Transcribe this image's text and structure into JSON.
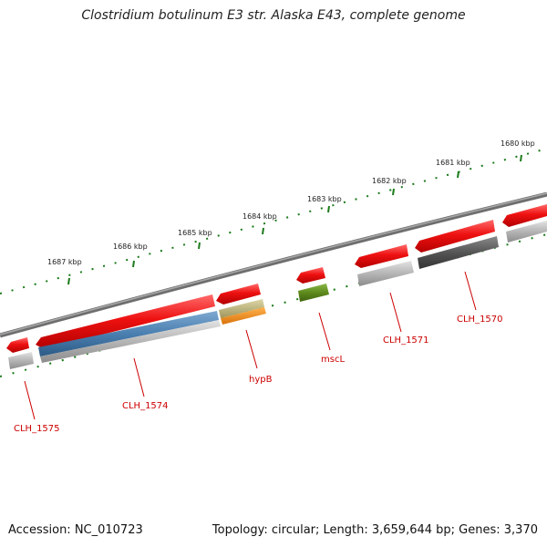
{
  "title": "Clostridium botulinum E3 str. Alaska E43, complete genome",
  "footer": {
    "accession": "Accession: NC_010723",
    "summary": "Topology: circular; Length: 3,659,644 bp; Genes: 3,370"
  },
  "colors": {
    "backbone": "#7a7a7a",
    "tick": "#1a7a1a",
    "cds_red": "#ee1111",
    "gray_feature": "#b5b5b5",
    "dark_feature": "#555555",
    "blue_feature": "#4a7fb0",
    "tan_feature": "#b9b077",
    "orange_feature": "#f28c0f",
    "green_feature": "#5e8a1c",
    "label": "#cc0000"
  },
  "scale": {
    "ticks_kbp": [
      "1680 kbp",
      "1681 kbp",
      "1682 kbp",
      "1683 kbp",
      "1684 kbp",
      "1685 kbp",
      "1686 kbp",
      "1687 kbp"
    ]
  },
  "genes": [
    {
      "label": "CLH_1570",
      "feature": "cds_red",
      "lower_feature": "dark_feature"
    },
    {
      "label": "CLH_1571",
      "feature": "cds_red",
      "lower_feature": "gray_feature"
    },
    {
      "label": "mscL",
      "feature": "cds_red",
      "lower_feature": "green_feature"
    },
    {
      "label": "hypB",
      "feature": "cds_red",
      "lower_feature": "tan_feature"
    },
    {
      "label": "CLH_1574",
      "feature": "cds_red",
      "lower_feature": "blue_feature"
    },
    {
      "label": "CLH_1575",
      "feature": "cds_red",
      "lower_feature": "gray_feature"
    }
  ]
}
